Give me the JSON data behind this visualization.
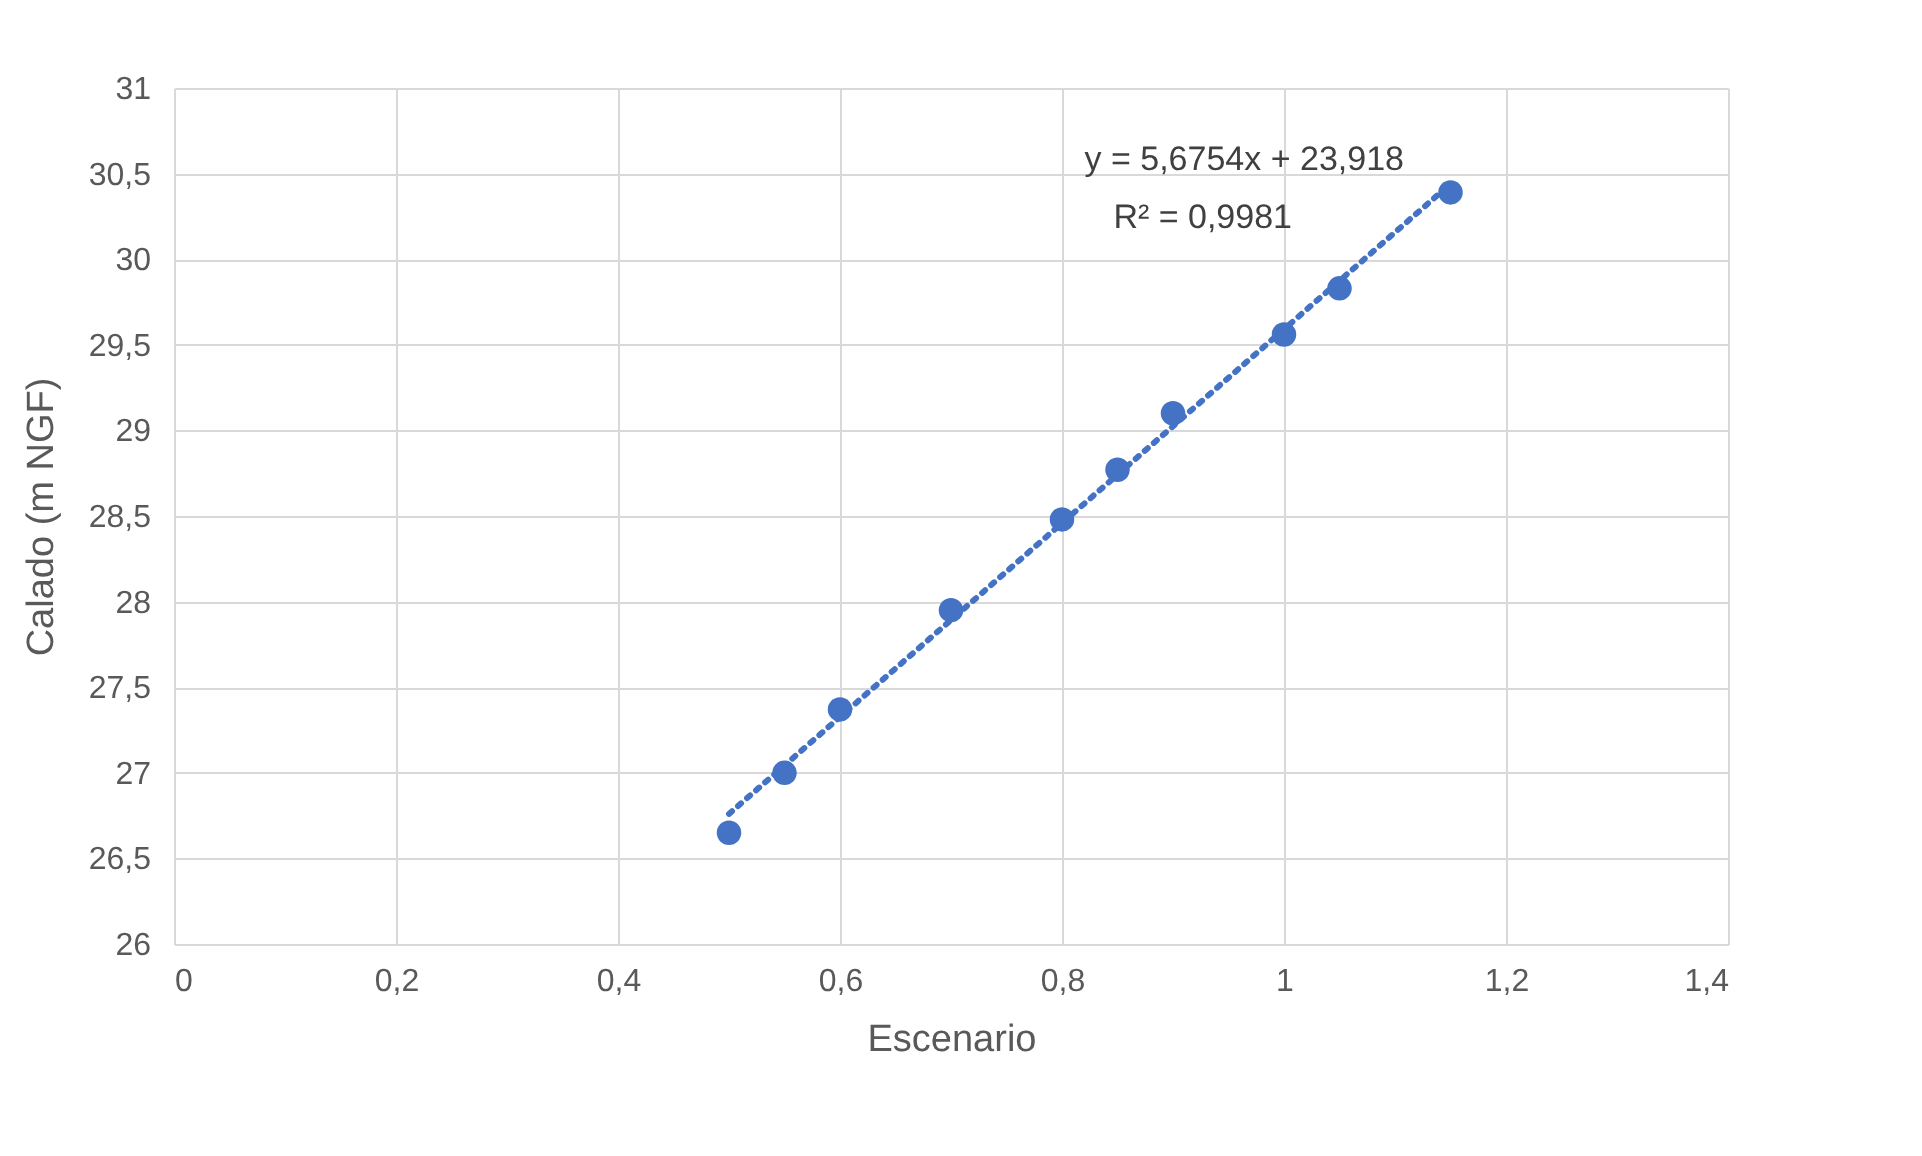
{
  "chart_data": {
    "type": "scatter",
    "xlabel": "Escenario",
    "ylabel": "Calado (m NGF)",
    "annotations": [
      "y = 5,6754x + 23,918",
      "R² = 0,9981"
    ],
    "series": [
      {
        "color": "#4472c4",
        "marker": "circle",
        "x": [
          0.5,
          0.55,
          0.6,
          0.7,
          0.8,
          0.85,
          0.9,
          1.0,
          1.05,
          1.15
        ],
        "values": [
          26.65,
          27.0,
          27.37,
          27.95,
          28.48,
          28.77,
          29.1,
          29.56,
          29.83,
          30.39
        ]
      },
      {
        "type": "line",
        "color": "#4472c4",
        "line_style": "dotted",
        "marker": "none",
        "x": [
          0.5,
          1.15
        ],
        "values": [
          26.76,
          30.44
        ]
      }
    ],
    "xlim": [
      0,
      1.4
    ],
    "xticks": [
      {
        "value": 0,
        "label": "0"
      },
      {
        "value": 0.2,
        "label": "0,2"
      },
      {
        "value": 0.4,
        "label": "0,4"
      },
      {
        "value": 0.6,
        "label": "0,6"
      },
      {
        "value": 0.8,
        "label": "0,8"
      },
      {
        "value": 1,
        "label": "1"
      },
      {
        "value": 1.2,
        "label": "1,2"
      },
      {
        "value": 1.4,
        "label": "1,4"
      }
    ],
    "ylim": [
      26,
      31
    ],
    "yticks": [
      {
        "value": 26,
        "label": "26"
      },
      {
        "value": 26.5,
        "label": "26,5"
      },
      {
        "value": 27,
        "label": "27"
      },
      {
        "value": 27.5,
        "label": "27,5"
      },
      {
        "value": 28,
        "label": "28"
      },
      {
        "value": 28.5,
        "label": "28,5"
      },
      {
        "value": 29,
        "label": "29"
      },
      {
        "value": 29.5,
        "label": "29,5"
      },
      {
        "value": 30,
        "label": "30"
      },
      {
        "value": 30.5,
        "label": "30,5"
      },
      {
        "value": 31,
        "label": "31"
      }
    ],
    "grid": true
  }
}
